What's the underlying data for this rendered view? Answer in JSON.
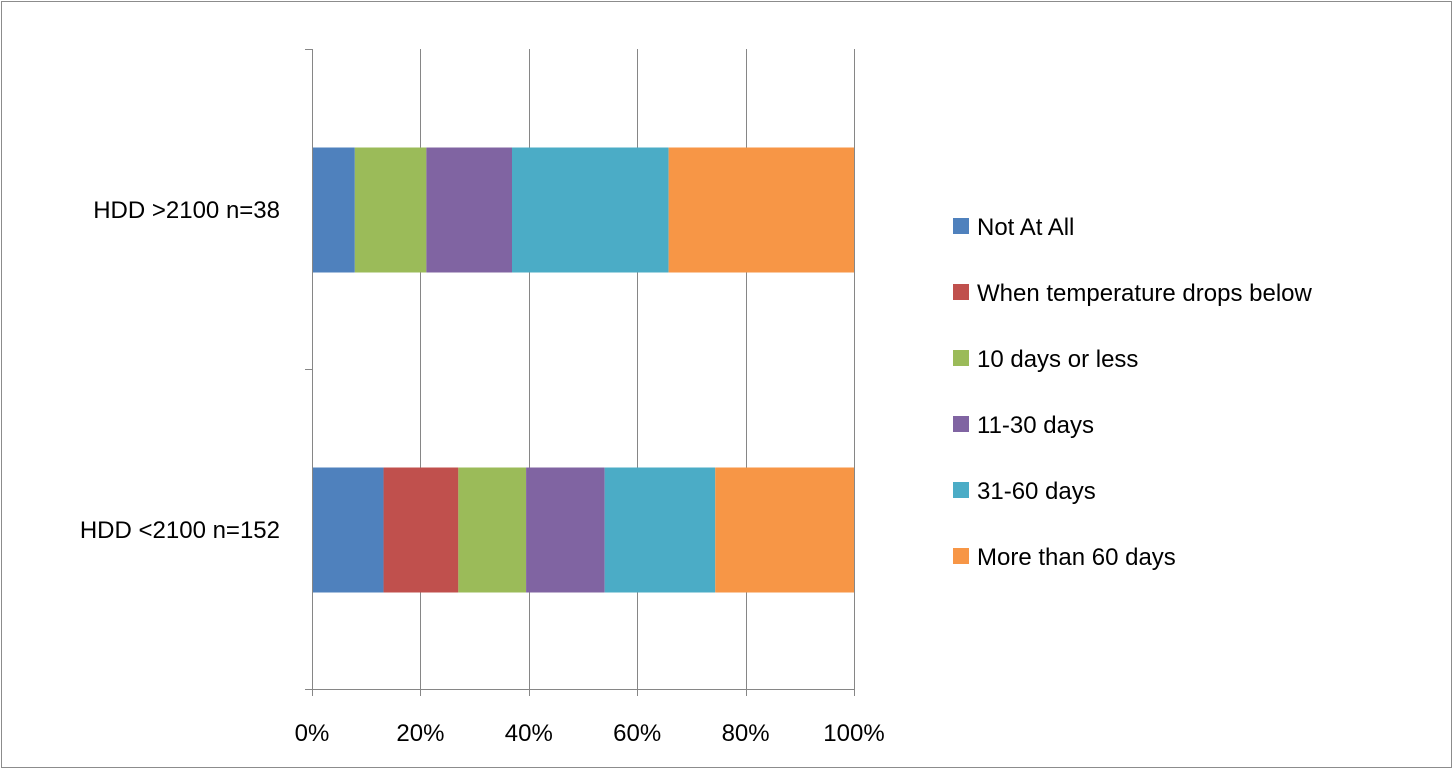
{
  "chart_data": {
    "type": "bar",
    "orientation": "horizontal",
    "stacked": "percent",
    "title": "",
    "xlabel": "",
    "ylabel": "",
    "xlim": [
      0,
      100
    ],
    "x_ticks": [
      "0%",
      "20%",
      "40%",
      "60%",
      "80%",
      "100%"
    ],
    "x_tick_values": [
      0,
      20,
      40,
      60,
      80,
      100
    ],
    "grid": "vertical",
    "legend_position": "right",
    "categories": [
      "HDD >2100 n=38",
      "HDD <2100 n=152"
    ],
    "series": [
      {
        "name": "Not At All",
        "color": "#4F81BD",
        "values": [
          7.9,
          13.2
        ]
      },
      {
        "name": "When temperature drops below",
        "color": "#C0504D",
        "values": [
          0,
          13.8
        ]
      },
      {
        "name": "10 days or less",
        "color": "#9BBB59",
        "values": [
          13.2,
          12.5
        ]
      },
      {
        "name": "11-30 days",
        "color": "#8064A2",
        "values": [
          15.8,
          14.5
        ]
      },
      {
        "name": "31-60 days",
        "color": "#4BACC6",
        "values": [
          28.9,
          20.4
        ]
      },
      {
        "name": "More than 60 days",
        "color": "#F79646",
        "values": [
          34.2,
          25.6
        ]
      }
    ]
  }
}
